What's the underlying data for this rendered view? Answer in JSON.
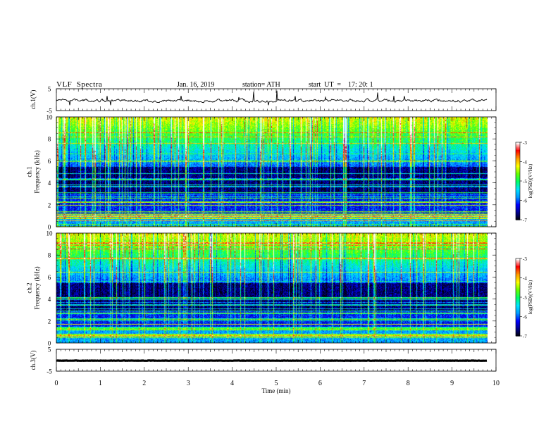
{
  "header": {
    "title": "VLF  Spectra",
    "date": "Jan. 16, 2019",
    "station": "station= ATH",
    "start": "start  UT  =    17: 20: 1"
  },
  "chart_data": {
    "type": "heatmap",
    "x_axis": {
      "label": "Time  (min)",
      "range": [
        0,
        10
      ],
      "ticks": [
        "0",
        "1",
        "2",
        "3",
        "4",
        "5",
        "6",
        "7",
        "8",
        "9",
        "10"
      ]
    },
    "panels": [
      {
        "id": "ch1-waveform",
        "type": "line",
        "ylabel": "ch.1(V)",
        "ylim": [
          -5,
          5
        ],
        "yticks": [
          "5",
          "-5"
        ],
        "baseline": 0,
        "data_end_min": 9.8
      },
      {
        "id": "ch1-spectrogram",
        "type": "heatmap",
        "ylabel": "ch.1\nFrequency (kHz)",
        "ylim": [
          0,
          10
        ],
        "yticks": [
          "0",
          "2",
          "4",
          "6",
          "8",
          "10"
        ],
        "data_end_min": 9.8,
        "colorbar": {
          "label": "log(PSD)(V²/Hz)",
          "range": [
            -7,
            -3
          ],
          "ticks": [
            "-3",
            "-4",
            "-5",
            "-6",
            "-7"
          ]
        }
      },
      {
        "id": "ch2-spectrogram",
        "type": "heatmap",
        "ylabel": "ch.2\nFrequency (kHz)",
        "ylim": [
          0,
          10
        ],
        "yticks": [
          "0",
          "2",
          "4",
          "6",
          "8",
          "10"
        ],
        "data_end_min": 9.8,
        "colorbar": {
          "label": "log(PSD)(V²/Hz)",
          "range": [
            -7,
            -3
          ],
          "ticks": [
            "-3",
            "-4",
            "-5",
            "-6",
            "-7"
          ]
        }
      },
      {
        "id": "ch3-waveform",
        "type": "line",
        "ylabel": "ch.3(V)",
        "ylim": [
          -5,
          5
        ],
        "yticks": [
          "5",
          "-5"
        ],
        "baseline": 0,
        "data_end_min": 9.8
      }
    ],
    "colorscale": [
      "#000000",
      "#00008b",
      "#0000ff",
      "#0099ff",
      "#00e5ff",
      "#00ff66",
      "#66ff00",
      "#ffff00",
      "#ff9900",
      "#ff0000",
      "#ffffff"
    ],
    "grid": false,
    "legend": "none"
  }
}
